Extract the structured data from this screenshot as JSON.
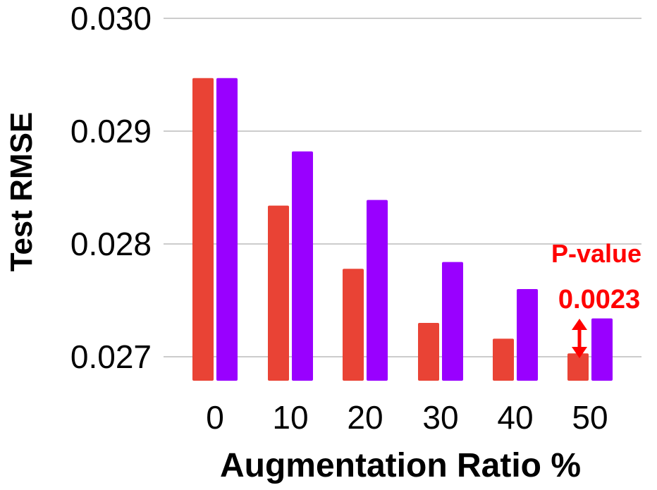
{
  "chart_data": {
    "type": "bar",
    "title": "",
    "xlabel": "Augmentation Ratio %",
    "ylabel": "Test RMSE",
    "categories": [
      "0",
      "10",
      "20",
      "30",
      "40",
      "50"
    ],
    "series": [
      {
        "values": [
          0.02947,
          0.02834,
          0.02778,
          0.0273,
          0.02716,
          0.02703
        ],
        "color": "#e94335"
      },
      {
        "values": [
          0.02947,
          0.02882,
          0.02839,
          0.02784,
          0.0276,
          0.02734
        ],
        "color": "#9900ff"
      }
    ],
    "ylim": [
      0.0268,
      0.03
    ],
    "yticks": [
      0.027,
      0.028,
      0.029,
      0.03
    ],
    "ytick_labels": [
      "0.027",
      "0.028",
      "0.029",
      "0.030"
    ],
    "grid": true,
    "legend": "none",
    "annotation": {
      "line1": "P-value",
      "line2": "0.0023",
      "category": "50",
      "color": "#ff0000"
    }
  }
}
